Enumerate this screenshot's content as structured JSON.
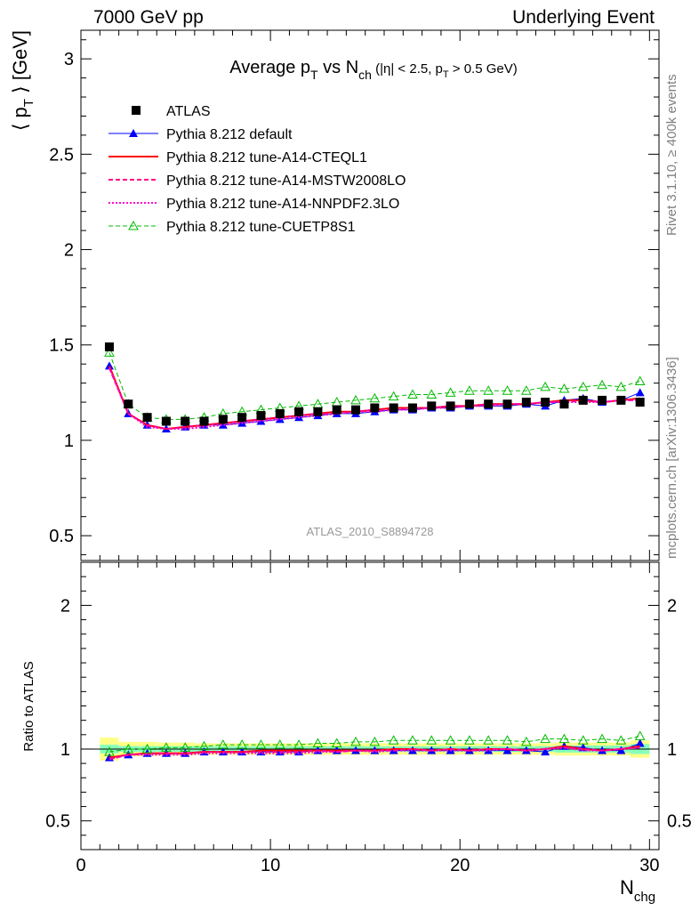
{
  "header": {
    "left": "7000 GeV pp",
    "right": "Underlying Event"
  },
  "side_labels": {
    "rivet": "Rivet 3.1.10, ≥ 400k events",
    "mcplots": "mcplots.cern.ch [arXiv:1306.3436]"
  },
  "watermark": "ATLAS_2010_S8894728",
  "colors": {
    "data": "#000000",
    "default": "#0000ff",
    "cteql1": "#ff0000",
    "mstw": "#ff0088",
    "nnpdf": "#ff00cc",
    "cuetp8s1": "#00bb00",
    "band_outer": "#ffff88",
    "band_inner": "#88ffbb"
  },
  "chart_data": [
    {
      "type": "line",
      "title": "Average p_T vs N_ch (|η| < 2.5, p_T > 0.5 GeV)",
      "title_parts": {
        "a": "Average p",
        "a_sub": "T",
        "b": " vs N",
        "b_sub": "ch",
        "c": " (|η| < 2.5, p",
        "c_sub": "T",
        "d": " > 0.5 GeV)"
      },
      "ylabel": "⟨ p_T ⟩ [GeV]",
      "ylabel_parts": {
        "a": "⟨ p",
        "sub": "T",
        "b": " ⟩ [GeV]"
      },
      "xlim": [
        0,
        30.5
      ],
      "ylim": [
        0.37,
        3.15
      ],
      "yticks": [
        0.5,
        1,
        1.5,
        2,
        2.5,
        3
      ],
      "ytick_labels": [
        "0.5",
        "1",
        "1.5",
        "2",
        "2.5",
        "3"
      ],
      "x": [
        1.5,
        2.5,
        3.5,
        4.5,
        5.5,
        6.5,
        7.5,
        8.5,
        9.5,
        10.5,
        11.5,
        12.5,
        13.5,
        14.5,
        15.5,
        16.5,
        17.5,
        18.5,
        19.5,
        20.5,
        21.5,
        22.5,
        23.5,
        24.5,
        25.5,
        26.5,
        27.5,
        28.5,
        29.5
      ],
      "series": [
        {
          "name": "ATLAS",
          "style": "data",
          "values": [
            1.49,
            1.19,
            1.12,
            1.1,
            1.1,
            1.1,
            1.11,
            1.12,
            1.13,
            1.14,
            1.15,
            1.15,
            1.16,
            1.16,
            1.17,
            1.17,
            1.17,
            1.18,
            1.18,
            1.19,
            1.19,
            1.19,
            1.2,
            1.2,
            1.19,
            1.21,
            1.21,
            1.21,
            1.2
          ]
        },
        {
          "name": "Pythia 8.212 default",
          "style": "default",
          "values": [
            1.39,
            1.14,
            1.08,
            1.06,
            1.07,
            1.08,
            1.08,
            1.09,
            1.1,
            1.11,
            1.12,
            1.13,
            1.14,
            1.14,
            1.15,
            1.16,
            1.16,
            1.17,
            1.17,
            1.18,
            1.18,
            1.18,
            1.19,
            1.18,
            1.21,
            1.22,
            1.2,
            1.21,
            1.25
          ]
        },
        {
          "name": "Pythia 8.212 tune-A14-CTEQL1",
          "style": "cteql1",
          "values": [
            1.39,
            1.14,
            1.08,
            1.06,
            1.07,
            1.08,
            1.09,
            1.1,
            1.11,
            1.12,
            1.13,
            1.14,
            1.15,
            1.15,
            1.16,
            1.17,
            1.17,
            1.17,
            1.18,
            1.18,
            1.19,
            1.19,
            1.19,
            1.2,
            1.21,
            1.21,
            1.2,
            1.21,
            1.22
          ]
        },
        {
          "name": "Pythia 8.212 tune-A14-MSTW2008LO",
          "style": "mstw",
          "values": [
            1.38,
            1.14,
            1.08,
            1.06,
            1.07,
            1.08,
            1.09,
            1.1,
            1.11,
            1.12,
            1.13,
            1.14,
            1.14,
            1.15,
            1.16,
            1.16,
            1.17,
            1.17,
            1.18,
            1.18,
            1.19,
            1.19,
            1.19,
            1.2,
            1.2,
            1.21,
            1.2,
            1.21,
            1.21
          ]
        },
        {
          "name": "Pythia 8.212 tune-A14-NNPDF2.3LO",
          "style": "nnpdf",
          "values": [
            1.38,
            1.14,
            1.07,
            1.06,
            1.06,
            1.07,
            1.08,
            1.09,
            1.1,
            1.11,
            1.12,
            1.13,
            1.14,
            1.15,
            1.15,
            1.16,
            1.16,
            1.17,
            1.17,
            1.18,
            1.18,
            1.19,
            1.19,
            1.2,
            1.2,
            1.2,
            1.2,
            1.21,
            1.21
          ]
        },
        {
          "name": "Pythia 8.212 tune-CUETP8S1",
          "style": "cuetp8s1",
          "values": [
            1.46,
            1.19,
            1.12,
            1.11,
            1.11,
            1.12,
            1.14,
            1.15,
            1.16,
            1.17,
            1.18,
            1.19,
            1.2,
            1.21,
            1.22,
            1.23,
            1.24,
            1.24,
            1.25,
            1.26,
            1.26,
            1.26,
            1.26,
            1.28,
            1.27,
            1.28,
            1.29,
            1.28,
            1.31
          ]
        }
      ]
    },
    {
      "type": "line",
      "xlabel": "N_chg",
      "xlabel_parts": {
        "a": "N",
        "sub": "chg"
      },
      "ylabel": "Ratio to ATLAS",
      "xlim": [
        0,
        30.5
      ],
      "ylim": [
        0.3,
        2.3
      ],
      "yticks": [
        0.5,
        1,
        2
      ],
      "ytick_labels": [
        "0.5",
        "1",
        "2"
      ],
      "xticks": [
        0,
        10,
        20,
        30
      ],
      "xtick_labels": [
        "0",
        "10",
        "20",
        "30"
      ],
      "x": [
        1.5,
        2.5,
        3.5,
        4.5,
        5.5,
        6.5,
        7.5,
        8.5,
        9.5,
        10.5,
        11.5,
        12.5,
        13.5,
        14.5,
        15.5,
        16.5,
        17.5,
        18.5,
        19.5,
        20.5,
        21.5,
        22.5,
        23.5,
        24.5,
        25.5,
        26.5,
        27.5,
        28.5,
        29.5
      ],
      "band_outer": [
        0.08,
        0.05,
        0.05,
        0.045,
        0.045,
        0.04,
        0.04,
        0.04,
        0.04,
        0.04,
        0.04,
        0.04,
        0.04,
        0.04,
        0.04,
        0.04,
        0.04,
        0.04,
        0.04,
        0.04,
        0.04,
        0.04,
        0.04,
        0.04,
        0.045,
        0.045,
        0.045,
        0.045,
        0.06
      ],
      "band_inner": [
        0.03,
        0.02,
        0.02,
        0.02,
        0.02,
        0.02,
        0.02,
        0.02,
        0.02,
        0.02,
        0.02,
        0.02,
        0.02,
        0.02,
        0.02,
        0.02,
        0.02,
        0.02,
        0.02,
        0.02,
        0.02,
        0.02,
        0.02,
        0.02,
        0.025,
        0.025,
        0.025,
        0.025,
        0.035
      ],
      "series": [
        {
          "name": "Pythia 8.212 default",
          "style": "default",
          "values": [
            0.94,
            0.96,
            0.97,
            0.97,
            0.97,
            0.98,
            0.98,
            0.98,
            0.98,
            0.98,
            0.98,
            0.99,
            0.99,
            0.99,
            0.99,
            0.99,
            0.99,
            0.99,
            0.99,
            0.99,
            0.99,
            0.99,
            0.99,
            0.98,
            1.02,
            1.01,
            0.99,
            0.99,
            1.04
          ]
        },
        {
          "name": "Pythia 8.212 tune-A14-CTEQL1",
          "style": "cteql1",
          "values": [
            0.94,
            0.96,
            0.97,
            0.97,
            0.97,
            0.98,
            0.98,
            0.98,
            0.99,
            0.99,
            0.99,
            0.99,
            0.99,
            0.99,
            0.99,
            1.0,
            1.0,
            0.99,
            1.0,
            0.99,
            1.0,
            1.0,
            0.99,
            1.0,
            1.02,
            1.0,
            0.99,
            1.0,
            1.02
          ]
        },
        {
          "name": "Pythia 8.212 tune-A14-MSTW2008LO",
          "style": "mstw",
          "values": [
            0.93,
            0.96,
            0.97,
            0.97,
            0.97,
            0.98,
            0.98,
            0.98,
            0.98,
            0.98,
            0.98,
            0.99,
            0.98,
            0.99,
            0.99,
            0.99,
            1.0,
            0.99,
            1.0,
            0.99,
            1.0,
            1.0,
            0.99,
            1.0,
            1.01,
            1.0,
            0.99,
            1.0,
            1.01
          ]
        },
        {
          "name": "Pythia 8.212 tune-A14-NNPDF2.3LO",
          "style": "nnpdf",
          "values": [
            0.93,
            0.96,
            0.96,
            0.96,
            0.96,
            0.97,
            0.97,
            0.97,
            0.97,
            0.97,
            0.97,
            0.98,
            0.98,
            0.99,
            0.98,
            0.99,
            0.99,
            0.99,
            0.99,
            0.99,
            0.99,
            1.0,
            0.99,
            1.0,
            1.01,
            0.99,
            0.99,
            1.0,
            1.01
          ]
        },
        {
          "name": "Pythia 8.212 tune-CUETP8S1",
          "style": "cuetp8s1",
          "values": [
            0.98,
            1.0,
            1.0,
            1.01,
            1.01,
            1.02,
            1.03,
            1.03,
            1.03,
            1.03,
            1.03,
            1.04,
            1.04,
            1.05,
            1.05,
            1.06,
            1.06,
            1.06,
            1.06,
            1.06,
            1.06,
            1.06,
            1.05,
            1.07,
            1.07,
            1.06,
            1.07,
            1.06,
            1.09
          ]
        }
      ]
    }
  ]
}
